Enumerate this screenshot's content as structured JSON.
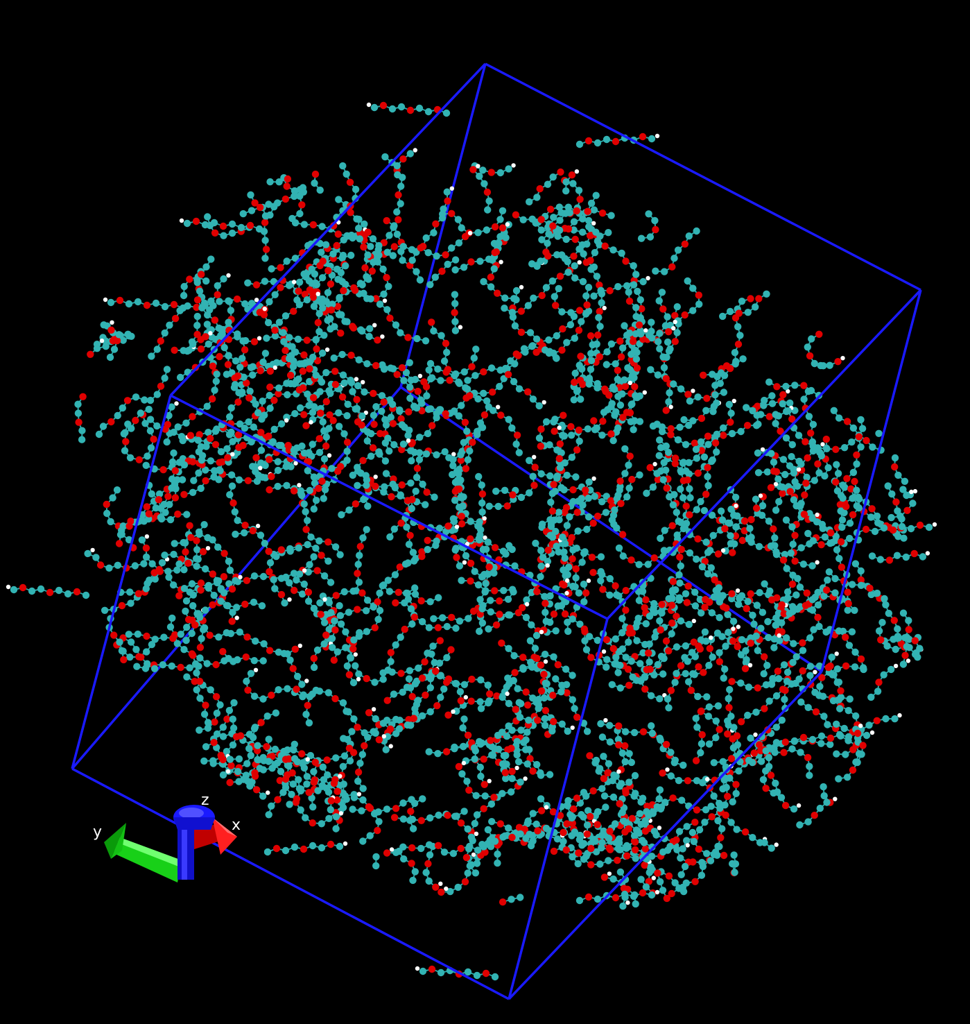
{
  "viewer": {
    "background_color": "#000000",
    "box_color": "#1a1aff"
  },
  "atoms": {
    "carbon_color": "#32b3b3",
    "oxygen_color": "#e00000",
    "hydrogen_color": "#ffffff",
    "bond_color": "#2aa6a6"
  },
  "axes": {
    "x_label": "x",
    "y_label": "y",
    "z_label": "z",
    "x_color": "#e01010",
    "y_color": "#10e010",
    "z_color": "#1a1aff"
  }
}
